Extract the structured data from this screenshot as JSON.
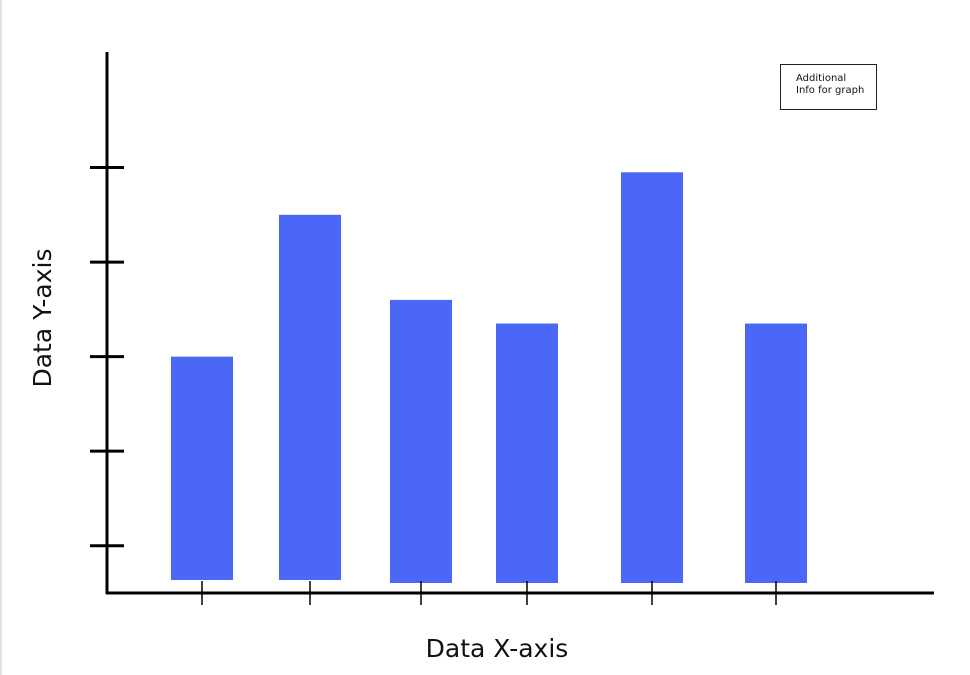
{
  "chart_data": {
    "type": "bar",
    "categories": [
      "",
      "",
      "",
      "",
      "",
      ""
    ],
    "values": [
      2.5,
      4.0,
      3.1,
      2.85,
      4.45,
      2.85
    ],
    "xlabel": "Data X-axis",
    "ylabel": "Data Y-axis",
    "ylim": [
      0,
      5.5
    ],
    "yticks": [
      0.5,
      1.5,
      2.5,
      3.5,
      4.5
    ],
    "grid": false,
    "bar_color": "#4a67f5",
    "annotation_lines": [
      "Additional",
      "Info for graph"
    ]
  }
}
